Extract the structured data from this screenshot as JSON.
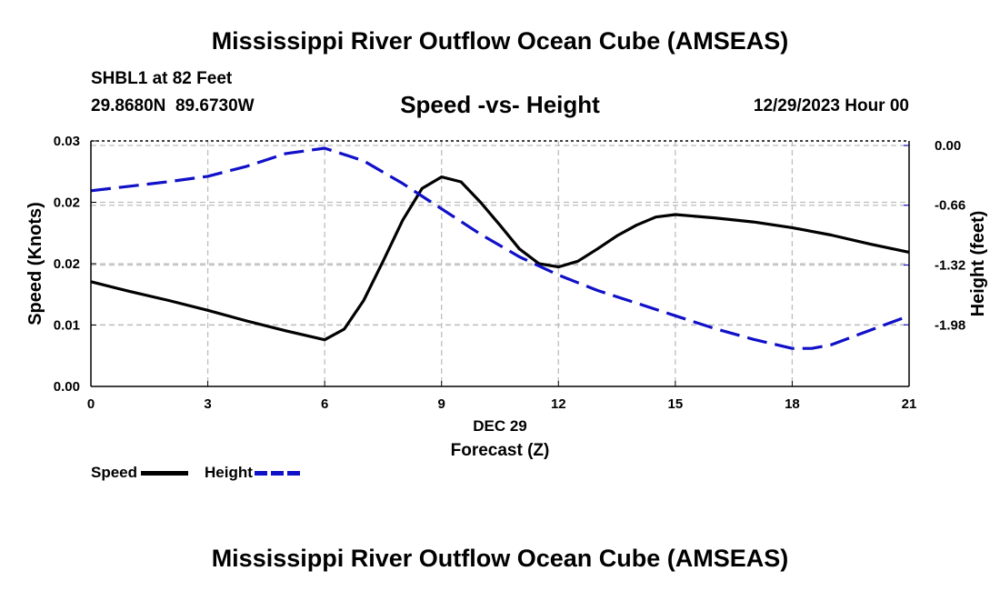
{
  "header": {
    "title": "Mississippi River Outflow Ocean Cube (AMSEAS)",
    "footer_title": "Mississippi River Outflow Ocean Cube (AMSEAS)"
  },
  "station": {
    "name_line": "SHBL1 at 82 Feet",
    "coords_line": "29.8680N  89.6730W"
  },
  "chart_heading": "Speed -vs- Height",
  "timestamp": "12/29/2023 Hour 00",
  "legend": {
    "speed_label": "Speed",
    "height_label": "Height",
    "speed_color": "#000000",
    "height_color": "#1010c8"
  },
  "chart_data": {
    "type": "line",
    "title": "Speed -vs- Height",
    "xlabel": "Forecast (Z)",
    "xlabel_date": "DEC 29",
    "ylabel_left": "Speed (Knots)",
    "ylabel_right": "Height (feet)",
    "x_ticks": [
      0,
      3,
      6,
      9,
      12,
      15,
      18,
      21
    ],
    "x_tick_labels": [
      "0",
      "3",
      "6",
      "9",
      "12",
      "15",
      "18",
      "21"
    ],
    "xlim": [
      0,
      21
    ],
    "ylim_left": [
      0,
      0.03
    ],
    "y_left_ticks": [
      0,
      0.0075,
      0.015,
      0.0225,
      0.03
    ],
    "y_left_tick_labels": [
      "0.00",
      "0.01",
      "0.02",
      "0.02",
      "0.03"
    ],
    "ylim_right": [
      -2.66,
      0.05
    ],
    "y_right_ticks": [
      0.0,
      -0.66,
      -1.32,
      -1.98
    ],
    "y_right_tick_labels": [
      "0.00",
      "-0.66",
      "-1.32",
      "-1.98"
    ],
    "grid": true,
    "series": [
      {
        "name": "Speed",
        "axis": "left",
        "color": "#000000",
        "dash": "solid",
        "x": [
          0,
          1,
          2,
          3,
          4,
          5,
          6,
          6.5,
          7,
          7.5,
          8,
          8.5,
          9,
          9.5,
          10,
          10.5,
          11,
          11.5,
          12,
          12.5,
          13,
          13.5,
          14,
          14.5,
          15,
          16,
          17,
          18,
          19,
          20,
          21
        ],
        "values": [
          0.0128,
          0.0116,
          0.0105,
          0.0093,
          0.008,
          0.0068,
          0.0057,
          0.007,
          0.0105,
          0.0153,
          0.0203,
          0.0242,
          0.0256,
          0.025,
          0.0225,
          0.0197,
          0.0168,
          0.015,
          0.0146,
          0.0153,
          0.0168,
          0.0184,
          0.0197,
          0.0207,
          0.021,
          0.0206,
          0.0201,
          0.0194,
          0.0185,
          0.0174,
          0.0164
        ]
      },
      {
        "name": "Height",
        "axis": "right",
        "color": "#1010c8",
        "dash": "dashed",
        "x": [
          0,
          1,
          2,
          3,
          4,
          5,
          6,
          7,
          8,
          9,
          10,
          11,
          12,
          13,
          14,
          15,
          16,
          17,
          18,
          18.5,
          19,
          20,
          21
        ],
        "values": [
          -0.5,
          -0.45,
          -0.4,
          -0.34,
          -0.23,
          -0.09,
          -0.03,
          -0.17,
          -0.42,
          -0.7,
          -0.98,
          -1.23,
          -1.43,
          -1.6,
          -1.74,
          -1.88,
          -2.02,
          -2.14,
          -2.24,
          -2.24,
          -2.2,
          -2.04,
          -1.88
        ]
      }
    ]
  }
}
